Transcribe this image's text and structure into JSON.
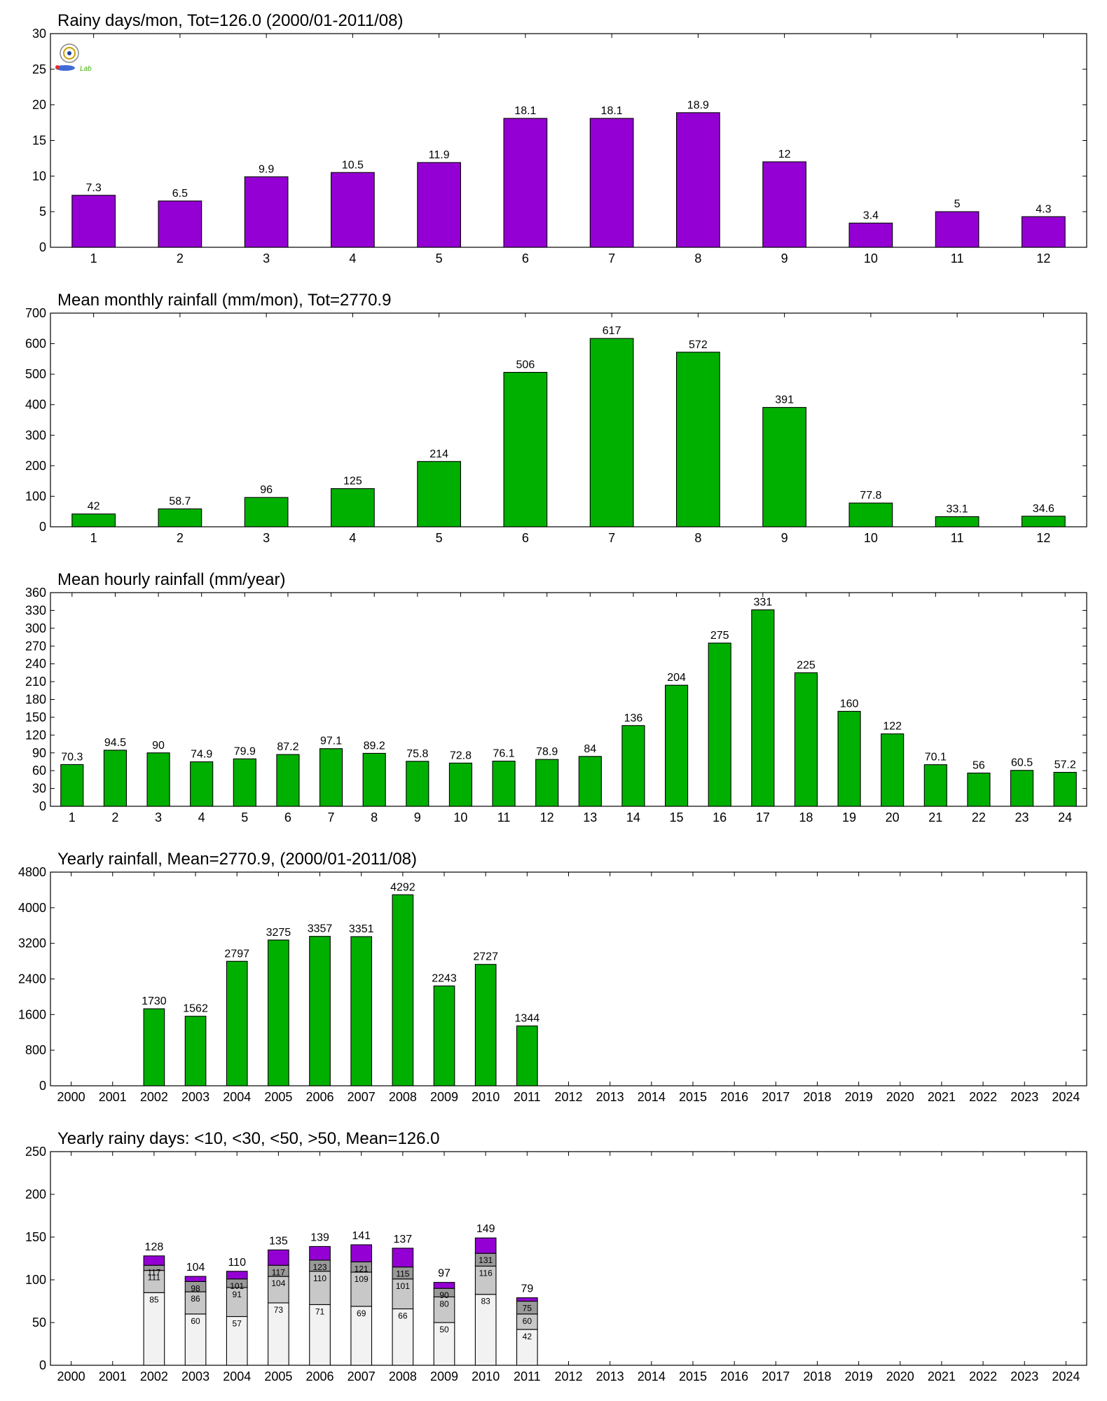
{
  "colors": {
    "purple": "#9400d3",
    "green": "#00b000",
    "seg_lt10": "#f2f2f2",
    "seg_lt30": "#c8c8c8",
    "seg_lt50": "#999999",
    "seg_gt50": "#9400d3"
  },
  "logo": {
    "icon": "lab-seal-logo",
    "text": "Lab"
  },
  "chart_data": [
    {
      "type": "bar",
      "title": "Rainy days/mon, Tot=126.0 (2000/01-2011/08)",
      "color": "#9400d3",
      "categories": [
        "1",
        "2",
        "3",
        "4",
        "5",
        "6",
        "7",
        "8",
        "9",
        "10",
        "11",
        "12"
      ],
      "values": [
        7.3,
        6.5,
        9.9,
        10.5,
        11.9,
        18.1,
        18.1,
        18.9,
        12,
        3.4,
        5,
        4.3
      ],
      "labels": [
        "7.3",
        "6.5",
        "9.9",
        "10.5",
        "11.9",
        "18.1",
        "18.1",
        "18.9",
        "12",
        "3.4",
        "5",
        "4.3"
      ],
      "ylim": [
        0,
        30
      ],
      "yticks": [
        0,
        5,
        10,
        15,
        20,
        25,
        30
      ]
    },
    {
      "type": "bar",
      "title": "Mean monthly rainfall (mm/mon), Tot=2770.9",
      "color": "#00b000",
      "categories": [
        "1",
        "2",
        "3",
        "4",
        "5",
        "6",
        "7",
        "8",
        "9",
        "10",
        "11",
        "12"
      ],
      "values": [
        42,
        58.7,
        96,
        125,
        214,
        506,
        617,
        572,
        391,
        77.8,
        33.1,
        34.6
      ],
      "labels": [
        "42",
        "58.7",
        "96",
        "125",
        "214",
        "506",
        "617",
        "572",
        "391",
        "77.8",
        "33.1",
        "34.6"
      ],
      "ylim": [
        0,
        700
      ],
      "yticks": [
        0,
        100,
        200,
        300,
        400,
        500,
        600,
        700
      ]
    },
    {
      "type": "bar",
      "title": "Mean hourly rainfall (mm/year)",
      "color": "#00b000",
      "categories": [
        "1",
        "2",
        "3",
        "4",
        "5",
        "6",
        "7",
        "8",
        "9",
        "10",
        "11",
        "12",
        "13",
        "14",
        "15",
        "16",
        "17",
        "18",
        "19",
        "20",
        "21",
        "22",
        "23",
        "24"
      ],
      "values": [
        70.3,
        94.5,
        90,
        74.9,
        79.9,
        87.2,
        97.1,
        89.2,
        75.8,
        72.8,
        76.1,
        78.9,
        84,
        136,
        204,
        275,
        331,
        225,
        160,
        122,
        70.1,
        56,
        60.5,
        57.2
      ],
      "labels": [
        "70.3",
        "94.5",
        "90",
        "74.9",
        "79.9",
        "87.2",
        "97.1",
        "89.2",
        "75.8",
        "72.8",
        "76.1",
        "78.9",
        "84",
        "136",
        "204",
        "275",
        "331",
        "225",
        "160",
        "122",
        "70.1",
        "56",
        "60.5",
        "57.2"
      ],
      "ylim": [
        0,
        360
      ],
      "yticks": [
        0,
        30,
        60,
        90,
        120,
        150,
        180,
        210,
        240,
        270,
        300,
        330,
        360
      ]
    },
    {
      "type": "bar",
      "title": "Yearly rainfall, Mean=2770.9, (2000/01-2011/08)",
      "color": "#00b000",
      "categories": [
        "2000",
        "2001",
        "2002",
        "2003",
        "2004",
        "2005",
        "2006",
        "2007",
        "2008",
        "2009",
        "2010",
        "2011",
        "2012",
        "2013",
        "2014",
        "2015",
        "2016",
        "2017",
        "2018",
        "2019",
        "2020",
        "2021",
        "2022",
        "2023",
        "2024"
      ],
      "values": [
        null,
        null,
        1730,
        1562,
        2797,
        3275,
        3357,
        3351,
        4292,
        2243,
        2727,
        1344,
        null,
        null,
        null,
        null,
        null,
        null,
        null,
        null,
        null,
        null,
        null,
        null,
        null
      ],
      "labels": [
        "",
        "",
        "1730",
        "1562",
        "2797",
        "3275",
        "3357",
        "3351",
        "4292",
        "2243",
        "2727",
        "1344",
        "",
        "",
        "",
        "",
        "",
        "",
        "",
        "",
        "",
        "",
        "",
        "",
        ""
      ],
      "ylim": [
        0,
        4800
      ],
      "yticks": [
        0,
        800,
        1600,
        2400,
        3200,
        4000,
        4800
      ]
    },
    {
      "type": "bar",
      "stacked": true,
      "title": "Yearly rainy days: <10, <30, <50, >50, Mean=126.0",
      "categories": [
        "2000",
        "2001",
        "2002",
        "2003",
        "2004",
        "2005",
        "2006",
        "2007",
        "2008",
        "2009",
        "2010",
        "2011",
        "2012",
        "2013",
        "2014",
        "2015",
        "2016",
        "2017",
        "2018",
        "2019",
        "2020",
        "2021",
        "2022",
        "2023",
        "2024"
      ],
      "ylim": [
        0,
        250
      ],
      "yticks": [
        0,
        50,
        100,
        150,
        200,
        250
      ],
      "cumulative": {
        "lt10": [
          null,
          null,
          85,
          60,
          57,
          73,
          71,
          69,
          66,
          50,
          83,
          42,
          null,
          null,
          null,
          null,
          null,
          null,
          null,
          null,
          null,
          null,
          null,
          null,
          null
        ],
        "lt30": [
          null,
          null,
          111,
          86,
          91,
          104,
          110,
          109,
          101,
          80,
          116,
          60,
          null,
          null,
          null,
          null,
          null,
          null,
          null,
          null,
          null,
          null,
          null,
          null,
          null
        ],
        "lt50": [
          null,
          null,
          117,
          98,
          101,
          117,
          123,
          121,
          115,
          90,
          131,
          75,
          null,
          null,
          null,
          null,
          null,
          null,
          null,
          null,
          null,
          null,
          null,
          null,
          null
        ],
        "total": [
          null,
          null,
          128,
          104,
          110,
          135,
          139,
          141,
          137,
          97,
          149,
          79,
          null,
          null,
          null,
          null,
          null,
          null,
          null,
          null,
          null,
          null,
          null,
          null,
          null
        ]
      },
      "labels": {
        "lt10": [
          "",
          "",
          "85",
          "60",
          "57",
          "73",
          "71",
          "69",
          "66",
          "50",
          "83",
          "42",
          "",
          "",
          "",
          "",
          "",
          "",
          "",
          "",
          "",
          "",
          "",
          "",
          ""
        ],
        "lt30": [
          "",
          "",
          "111",
          "86",
          "91",
          "104",
          "110",
          "109",
          "101",
          "80",
          "116",
          "60",
          "",
          "",
          "",
          "",
          "",
          "",
          "",
          "",
          "",
          "",
          "",
          "",
          ""
        ],
        "lt50": [
          "",
          "",
          "117",
          "98",
          "101",
          "117",
          "123",
          "121",
          "115",
          "90",
          "131",
          "75",
          "",
          "",
          "",
          "",
          "",
          "",
          "",
          "",
          "",
          "",
          "",
          "",
          ""
        ],
        "total": [
          "",
          "",
          "128",
          "104",
          "110",
          "135",
          "139",
          "141",
          "137",
          "97",
          "149",
          "79",
          "",
          "",
          "",
          "",
          "",
          "",
          "",
          "",
          "",
          "",
          "",
          "",
          ""
        ]
      }
    }
  ]
}
